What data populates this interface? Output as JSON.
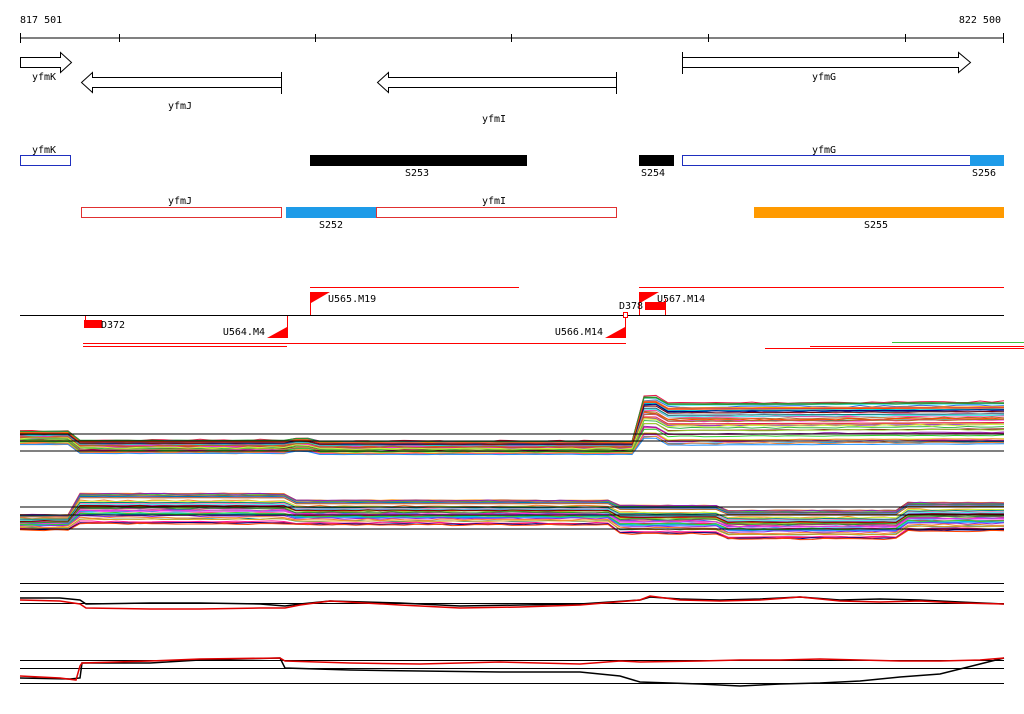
{
  "ruler": {
    "start_label": "817 501",
    "end_label": "822 500"
  },
  "genes": [
    {
      "name": "yfmK",
      "strand": "+"
    },
    {
      "name": "yfmJ",
      "strand": "-"
    },
    {
      "name": "yfmI",
      "strand": "-"
    },
    {
      "name": "yfmG",
      "strand": "+"
    }
  ],
  "annotation_plus_row": [
    {
      "label": "yfmK",
      "kind": "gene"
    },
    {
      "label": "S253",
      "kind": "segment"
    },
    {
      "label": "S254",
      "kind": "segment"
    },
    {
      "label": "yfmG",
      "kind": "gene"
    },
    {
      "label": "S256",
      "kind": "segment"
    }
  ],
  "annotation_minus_row": [
    {
      "label": "yfmJ",
      "kind": "gene"
    },
    {
      "label": "S252",
      "kind": "segment"
    },
    {
      "label": "yfmI",
      "kind": "gene"
    },
    {
      "label": "S255",
      "kind": "segment"
    }
  ],
  "upshift_markers": [
    {
      "label": "U565.M19",
      "strand": "+"
    },
    {
      "label": "U567.M14",
      "strand": "+"
    },
    {
      "label": "U564.M4",
      "strand": "-"
    },
    {
      "label": "U566.M14",
      "strand": "-"
    }
  ],
  "downshift_markers": [
    {
      "label": "D372",
      "strand": "-"
    },
    {
      "label": "D378",
      "strand": "+"
    }
  ],
  "colors": {
    "gene_plus": "#1f2fbf",
    "gene_minus": "#e03030",
    "segment_black": "#000000",
    "segment_blue": "#1e9be8",
    "segment_orange": "#ff9a00",
    "marker_red": "#ff0000"
  }
}
